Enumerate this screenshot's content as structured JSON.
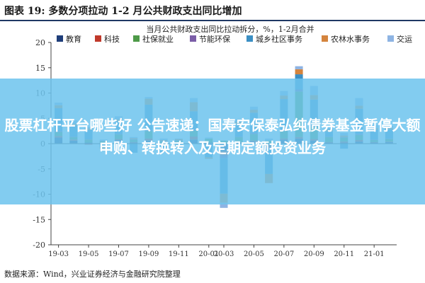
{
  "figure": {
    "title": "图表 19: 多数分项拉动 1-2 月公共财政支出同比增加",
    "source": "数据来源：Wind，兴业证券经济与金融研究院整理"
  },
  "overlay": {
    "headline": "股票杠杆平台哪些好 公告速递：国寿安保泰弘纯债券基金暂停大额申购、转换转入及定期定额投资业务",
    "color": "#6ec4ee"
  },
  "chart_data": {
    "type": "bar",
    "stacked": true,
    "title": "当月公共财政支出同比拉动拆分，%，1-2月合并",
    "xlabel": "",
    "ylabel": "",
    "ylim": [
      -20,
      20
    ],
    "yticks": [
      -20,
      -15,
      -10,
      -5,
      0,
      5,
      10,
      15,
      20
    ],
    "grid": false,
    "legend_position": "top",
    "categories": [
      "19-03",
      "19-04",
      "19-05",
      "19-06",
      "19-07",
      "19-08",
      "19-09",
      "19-10",
      "19-11",
      "19-12",
      "20-01",
      "20-03",
      "20-04",
      "20-05",
      "20-06",
      "20-07",
      "20-08",
      "20-09",
      "20-10",
      "20-11",
      "20-12",
      "21-01",
      "21-03"
    ],
    "x_tick_labels": [
      "19-03",
      "19-05",
      "19-07",
      "19-09",
      "19-11",
      "20-01",
      "20-03",
      "20-05",
      "20-07",
      "20-09",
      "20-11",
      "21-01"
    ],
    "series": [
      {
        "name": "教育",
        "color": "#1f3e7a",
        "values": [
          1.2,
          0.6,
          0.2,
          -0.2,
          0.7,
          0.2,
          0.6,
          -0.2,
          0.2,
          0.8,
          0.2,
          -1.5,
          0.2,
          0.4,
          -0.4,
          0.8,
          1.0,
          0.6,
          0.2,
          0.2,
          0.4,
          0.2,
          0.3
        ]
      },
      {
        "name": "科技",
        "color": "#c0392b",
        "values": [
          0.3,
          0.2,
          -0.2,
          0.1,
          0.2,
          0.1,
          0.4,
          0.1,
          0.1,
          0.6,
          -0.1,
          -0.8,
          0.1,
          0.2,
          -0.3,
          0.2,
          0.3,
          0.3,
          0.1,
          0.2,
          0.3,
          0.1,
          0.1
        ]
      },
      {
        "name": "社保就业",
        "color": "#4e9a48",
        "values": [
          0.8,
          0.5,
          0.6,
          0.4,
          0.9,
          0.5,
          1.5,
          0.3,
          0.3,
          1.2,
          0.8,
          0.6,
          1.0,
          1.3,
          0.6,
          1.5,
          9.0,
          2.5,
          1.0,
          0.8,
          1.0,
          0.4,
          0.5
        ]
      },
      {
        "name": "节能环保",
        "color": "#7b5ea7",
        "values": [
          0.2,
          0.1,
          0.1,
          0.1,
          0.1,
          0.1,
          0.2,
          0.1,
          0.1,
          0.3,
          -0.1,
          -0.6,
          0.1,
          0.2,
          -0.3,
          0.3,
          0.4,
          0.3,
          0.1,
          0.1,
          0.2,
          0.1,
          0.1
        ]
      },
      {
        "name": "城乡社区事务",
        "color": "#3b8fc4",
        "values": [
          4.5,
          2.2,
          1.8,
          -0.5,
          2.5,
          -1.8,
          5.0,
          -1.5,
          -0.8,
          3.5,
          -2.5,
          -7.0,
          2.5,
          4.0,
          -5.0,
          6.0,
          3.0,
          5.0,
          1.0,
          -1.0,
          5.0,
          2.0,
          1.8
        ]
      },
      {
        "name": "农林水事务",
        "color": "#d4843e",
        "values": [
          0.6,
          0.3,
          0.3,
          -0.3,
          0.4,
          0.2,
          1.2,
          0.2,
          0.2,
          1.8,
          -0.3,
          -1.8,
          0.4,
          0.6,
          -1.8,
          0.7,
          1.0,
          0.9,
          0.4,
          0.3,
          0.6,
          0.3,
          0.3
        ]
      },
      {
        "name": "交运",
        "color": "#8eb4e3",
        "values": [
          0.5,
          0.7,
          0.3,
          0.2,
          0.6,
          0.2,
          0.3,
          0.3,
          0.1,
          0.8,
          0.2,
          -1.0,
          0.5,
          0.6,
          0.4,
          0.9,
          0.6,
          1.8,
          0.8,
          0.5,
          1.5,
          0.6,
          0.4
        ]
      }
    ]
  }
}
